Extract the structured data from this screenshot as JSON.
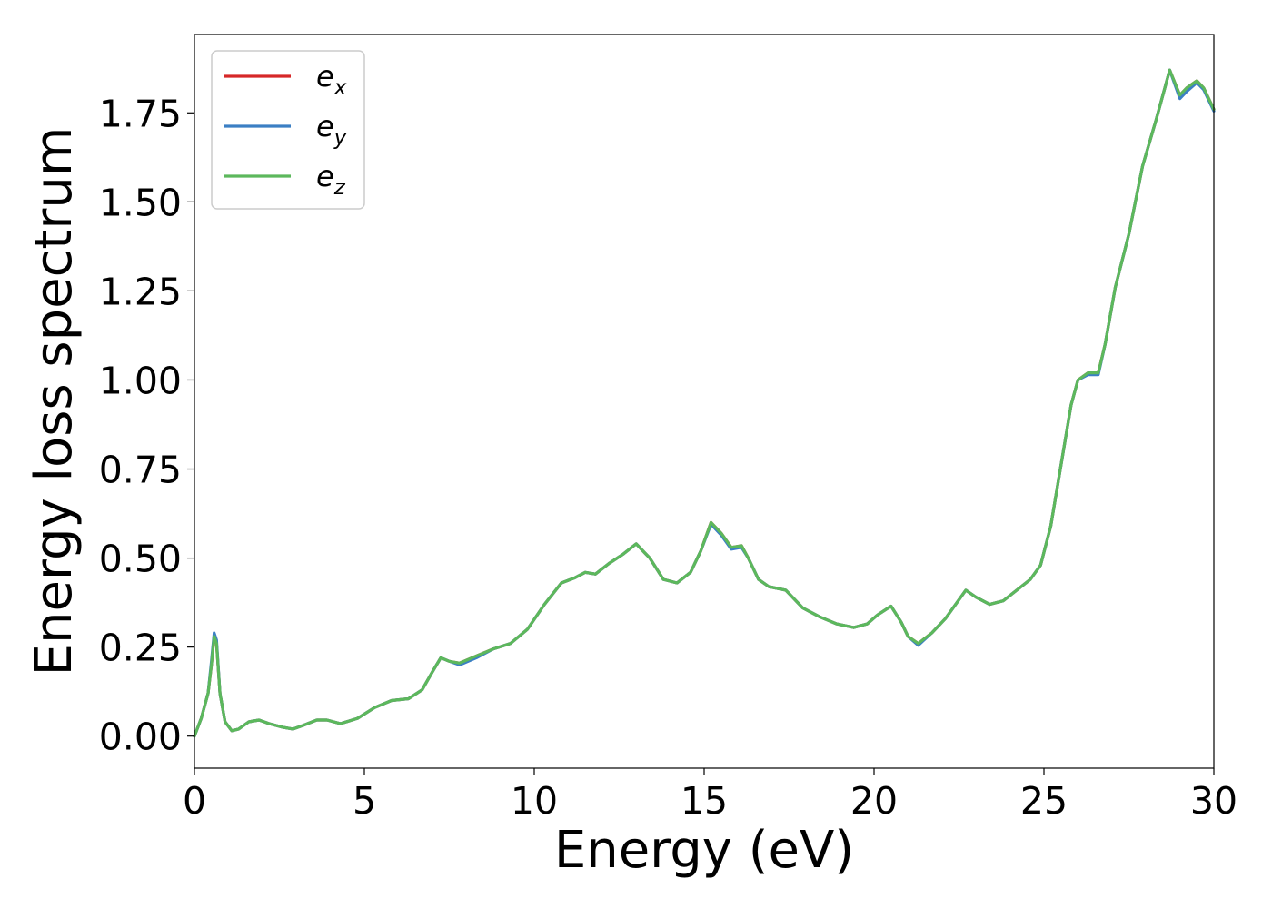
{
  "chart_data": {
    "type": "line",
    "title": "",
    "xlabel": "Energy (eV)",
    "ylabel": "Energy loss spectrum",
    "xlim": [
      0,
      30
    ],
    "ylim": [
      -0.09,
      1.97
    ],
    "xticks": [
      0,
      5,
      10,
      15,
      20,
      25,
      30
    ],
    "yticks": [
      0.0,
      0.25,
      0.5,
      0.75,
      1.0,
      1.25,
      1.5,
      1.75
    ],
    "ytick_labels": [
      "0.00",
      "0.25",
      "0.50",
      "0.75",
      "1.00",
      "1.25",
      "1.50",
      "1.75"
    ],
    "grid": false,
    "legend_position": "top-left",
    "x": [
      0,
      0.2,
      0.4,
      0.5,
      0.58,
      0.65,
      0.75,
      0.9,
      1.1,
      1.3,
      1.6,
      1.9,
      2.2,
      2.6,
      2.9,
      3.2,
      3.6,
      3.9,
      4.3,
      4.8,
      5.3,
      5.8,
      6.3,
      6.7,
      7.0,
      7.25,
      7.5,
      7.8,
      8.3,
      8.8,
      9.3,
      9.8,
      10.3,
      10.8,
      11.2,
      11.5,
      11.8,
      12.2,
      12.6,
      13.0,
      13.4,
      13.8,
      14.2,
      14.6,
      14.9,
      15.2,
      15.5,
      15.8,
      16.1,
      16.3,
      16.6,
      16.9,
      17.4,
      17.9,
      18.4,
      18.9,
      19.4,
      19.8,
      20.1,
      20.5,
      20.8,
      21.0,
      21.3,
      21.7,
      22.1,
      22.4,
      22.7,
      23.0,
      23.4,
      23.8,
      24.2,
      24.6,
      24.9,
      25.2,
      25.5,
      25.8,
      26.0,
      26.3,
      26.6,
      26.8,
      27.1,
      27.5,
      27.9,
      28.3,
      28.7,
      29.0,
      29.2,
      29.5,
      29.7,
      30.0
    ],
    "series": [
      {
        "name": "e_x",
        "color": "#d62728",
        "values": [
          0.0,
          0.05,
          0.12,
          0.2,
          0.28,
          0.26,
          0.12,
          0.04,
          0.015,
          0.02,
          0.04,
          0.045,
          0.035,
          0.025,
          0.02,
          0.03,
          0.045,
          0.045,
          0.035,
          0.05,
          0.08,
          0.1,
          0.105,
          0.13,
          0.18,
          0.22,
          0.21,
          0.205,
          0.225,
          0.245,
          0.26,
          0.3,
          0.37,
          0.43,
          0.445,
          0.46,
          0.455,
          0.485,
          0.51,
          0.54,
          0.5,
          0.44,
          0.43,
          0.46,
          0.52,
          0.6,
          0.57,
          0.53,
          0.535,
          0.5,
          0.44,
          0.42,
          0.41,
          0.36,
          0.335,
          0.315,
          0.305,
          0.315,
          0.34,
          0.365,
          0.32,
          0.28,
          0.26,
          0.29,
          0.33,
          0.37,
          0.41,
          0.39,
          0.37,
          0.38,
          0.41,
          0.44,
          0.48,
          0.59,
          0.76,
          0.93,
          1.0,
          1.02,
          1.02,
          1.1,
          1.26,
          1.41,
          1.6,
          1.73,
          1.87,
          1.8,
          1.82,
          1.84,
          1.82,
          1.76
        ]
      },
      {
        "name": "e_y",
        "color": "#3b7fc4",
        "values": [
          0.0,
          0.05,
          0.12,
          0.21,
          0.29,
          0.27,
          0.12,
          0.04,
          0.015,
          0.02,
          0.04,
          0.045,
          0.035,
          0.025,
          0.02,
          0.03,
          0.045,
          0.045,
          0.035,
          0.05,
          0.08,
          0.1,
          0.105,
          0.13,
          0.18,
          0.22,
          0.21,
          0.2,
          0.22,
          0.245,
          0.26,
          0.3,
          0.37,
          0.43,
          0.445,
          0.46,
          0.455,
          0.485,
          0.51,
          0.54,
          0.5,
          0.44,
          0.43,
          0.46,
          0.52,
          0.595,
          0.565,
          0.525,
          0.53,
          0.5,
          0.44,
          0.42,
          0.41,
          0.36,
          0.335,
          0.315,
          0.305,
          0.315,
          0.34,
          0.365,
          0.32,
          0.28,
          0.255,
          0.29,
          0.33,
          0.37,
          0.41,
          0.39,
          0.37,
          0.38,
          0.41,
          0.44,
          0.48,
          0.59,
          0.76,
          0.93,
          1.0,
          1.015,
          1.015,
          1.1,
          1.26,
          1.41,
          1.6,
          1.73,
          1.87,
          1.79,
          1.81,
          1.835,
          1.815,
          1.755
        ]
      },
      {
        "name": "e_z",
        "color": "#5cb85c",
        "values": [
          0.0,
          0.05,
          0.12,
          0.2,
          0.28,
          0.26,
          0.12,
          0.04,
          0.015,
          0.02,
          0.04,
          0.045,
          0.035,
          0.025,
          0.02,
          0.03,
          0.045,
          0.045,
          0.035,
          0.05,
          0.08,
          0.1,
          0.105,
          0.13,
          0.18,
          0.22,
          0.21,
          0.205,
          0.225,
          0.245,
          0.26,
          0.3,
          0.37,
          0.43,
          0.445,
          0.46,
          0.455,
          0.485,
          0.51,
          0.54,
          0.5,
          0.44,
          0.43,
          0.46,
          0.52,
          0.6,
          0.57,
          0.53,
          0.535,
          0.5,
          0.44,
          0.42,
          0.41,
          0.36,
          0.335,
          0.315,
          0.305,
          0.315,
          0.34,
          0.365,
          0.32,
          0.28,
          0.26,
          0.29,
          0.33,
          0.37,
          0.41,
          0.39,
          0.37,
          0.38,
          0.41,
          0.44,
          0.48,
          0.59,
          0.76,
          0.93,
          1.0,
          1.02,
          1.02,
          1.1,
          1.26,
          1.41,
          1.6,
          1.73,
          1.87,
          1.8,
          1.82,
          1.84,
          1.82,
          1.76
        ]
      }
    ]
  }
}
